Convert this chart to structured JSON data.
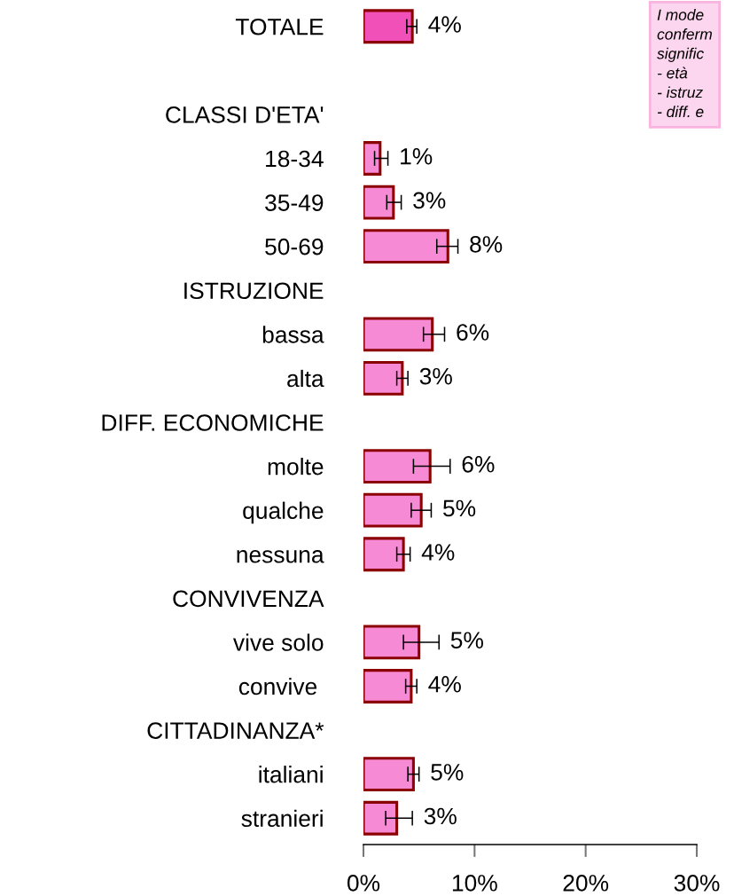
{
  "chart_data": {
    "type": "bar",
    "orientation": "horizontal",
    "categories": [
      "TOTALE",
      null,
      "CLASSI D'ETA'",
      "18-34",
      "35-49",
      "50-69",
      "ISTRUZIONE",
      "bassa",
      "alta",
      "DIFF. ECONOMICHE",
      "molte",
      "qualche",
      "nessuna",
      "CONVIVENZA",
      "vive solo",
      "convive ",
      "CITTADINANZA*",
      "italiani",
      "stranieri"
    ],
    "values": [
      4.4,
      null,
      null,
      1.5,
      2.7,
      7.6,
      null,
      6.2,
      3.5,
      null,
      6.0,
      5.2,
      3.6,
      null,
      5.0,
      4.3,
      null,
      4.5,
      3.0
    ],
    "errors": [
      [
        3.9,
        4.8
      ],
      null,
      null,
      [
        1.0,
        2.2
      ],
      [
        2.1,
        3.4
      ],
      [
        6.6,
        8.5
      ],
      null,
      [
        5.4,
        7.3
      ],
      [
        3.0,
        4.0
      ],
      null,
      [
        4.5,
        7.8
      ],
      [
        4.3,
        6.1
      ],
      [
        3.0,
        4.2
      ],
      null,
      [
        3.6,
        6.8
      ],
      [
        3.8,
        4.8
      ],
      null,
      [
        4.0,
        5.0
      ],
      [
        2.0,
        4.4
      ]
    ],
    "value_labels": [
      "4%",
      null,
      null,
      "1%",
      "3%",
      "8%",
      null,
      "6%",
      "3%",
      null,
      "6%",
      "5%",
      "4%",
      null,
      "5%",
      "4%",
      null,
      "5%",
      "3%"
    ],
    "colors": [
      "#f050b8",
      null,
      null,
      "#f78ad4",
      "#f78ad4",
      "#f78ad4",
      null,
      "#f78ad4",
      "#f78ad4",
      null,
      "#f78ad4",
      "#f78ad4",
      "#f78ad4",
      null,
      "#f78ad4",
      "#f78ad4",
      null,
      "#f78ad4",
      "#f78ad4"
    ],
    "xlim": [
      0,
      30
    ],
    "xticks": [
      {
        "value": 0,
        "label": "0%"
      },
      {
        "value": 10,
        "label": "10%"
      },
      {
        "value": 20,
        "label": "20%"
      },
      {
        "value": 30,
        "label": "30%"
      }
    ],
    "grid": false,
    "annotations": [
      "I mode\nconferm\nsignific\n- età\n- istruz\n- diff. e"
    ]
  }
}
